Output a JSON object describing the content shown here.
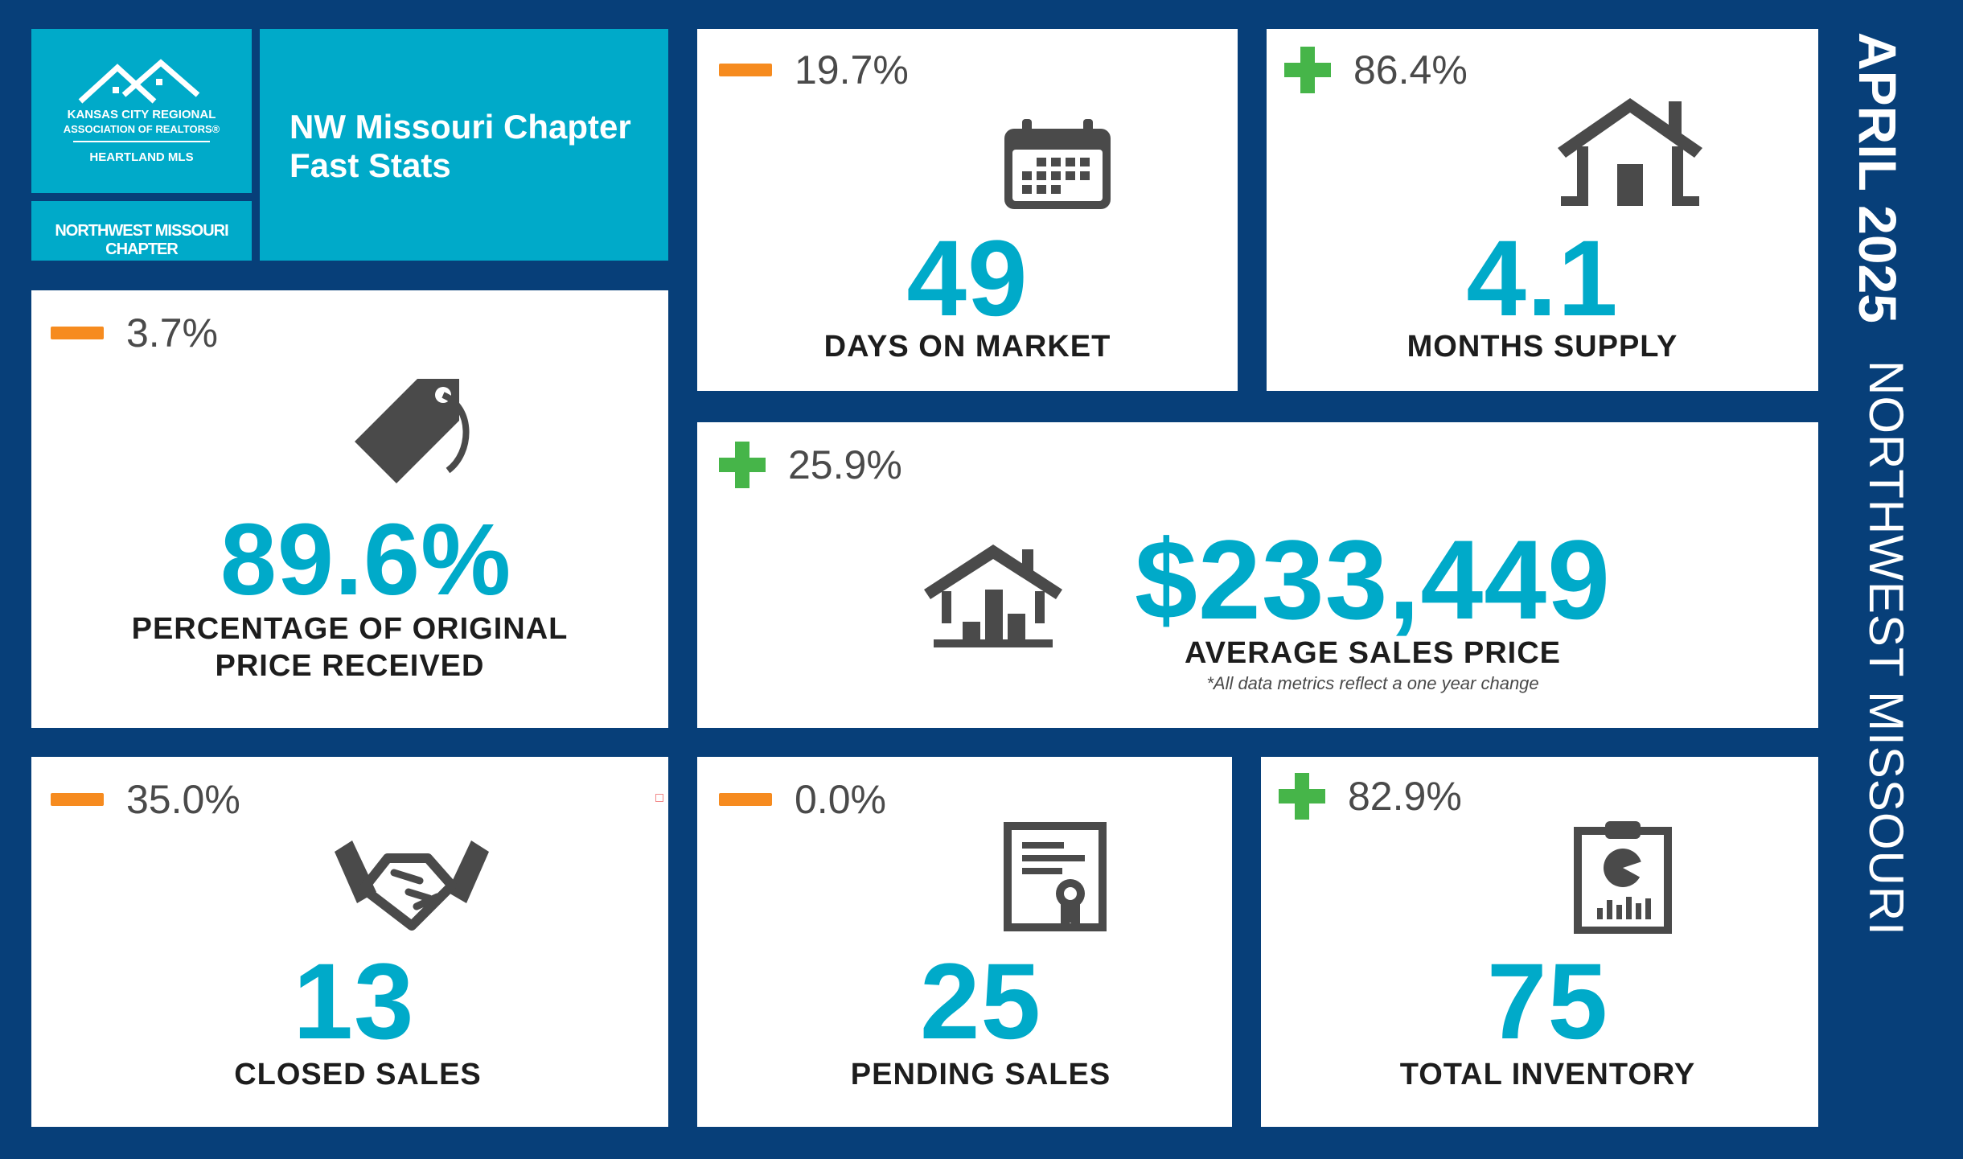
{
  "logo": {
    "line1": "KANSAS CITY REGIONAL",
    "line2": "ASSOCIATION OF REALTORS®",
    "line3": "HEARTLAND MLS",
    "chapter": "NORTHWEST MISSOURI CHAPTER"
  },
  "header": {
    "title_line1": "NW Missouri Chapter",
    "title_line2": "Fast Stats"
  },
  "side": {
    "date": "APRIL 2025",
    "region": "NORTHWEST MISSOURI"
  },
  "colors": {
    "background": "#073f79",
    "accent": "#00aac9",
    "increase": "#46b549",
    "decrease": "#f68b1f",
    "icon": "#4a4a4a"
  },
  "metrics": {
    "days_on_market": {
      "change": "19.7%",
      "direction": "down",
      "value": "49",
      "label": "DAYS ON MARKET",
      "icon": "calendar-icon"
    },
    "months_supply": {
      "change": "86.4%",
      "direction": "up",
      "value": "4.1",
      "label": "MONTHS SUPPLY",
      "icon": "house-icon"
    },
    "pct_original_price": {
      "change": "3.7%",
      "direction": "down",
      "value": "89.6%",
      "label_line1": "PERCENTAGE OF ORIGINAL",
      "label_line2": "PRICE RECEIVED",
      "icon": "price-tag-icon"
    },
    "avg_sales_price": {
      "change": "25.9%",
      "direction": "up",
      "value": "$233,449",
      "label": "AVERAGE SALES PRICE",
      "note": "*All data metrics reflect a one year change",
      "icon": "house-chart-icon"
    },
    "closed_sales": {
      "change": "35.0%",
      "direction": "down",
      "value": "13",
      "label": "CLOSED SALES",
      "icon": "handshake-icon"
    },
    "pending_sales": {
      "change": "0.0%",
      "direction": "down",
      "value": "25",
      "label": "PENDING SALES",
      "icon": "certificate-icon"
    },
    "total_inventory": {
      "change": "82.9%",
      "direction": "up",
      "value": "75",
      "label": "TOTAL INVENTORY",
      "icon": "clipboard-chart-icon"
    }
  }
}
